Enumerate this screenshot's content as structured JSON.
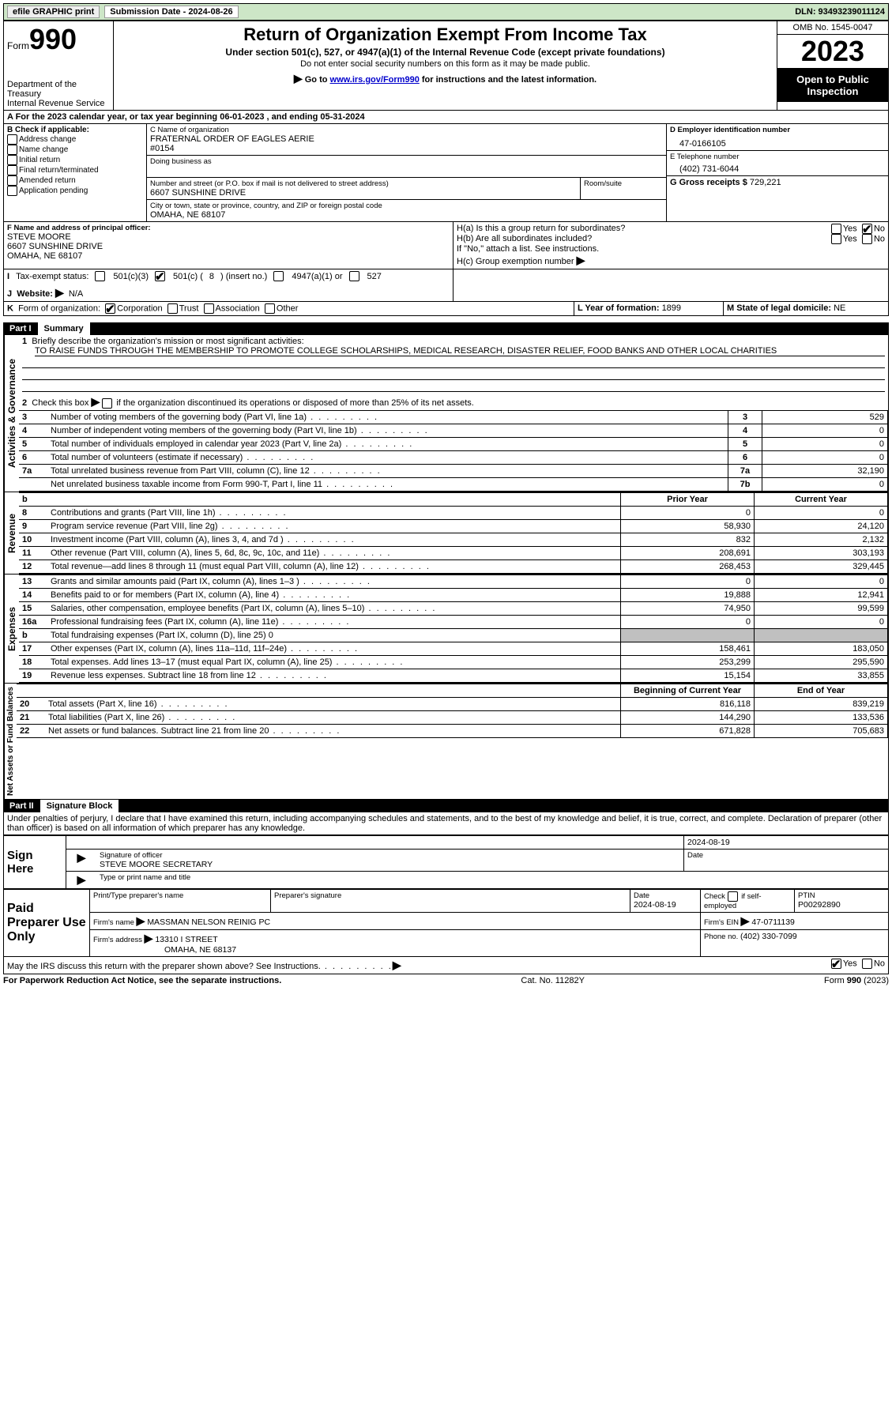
{
  "topbar": {
    "efile_label": "efile GRAPHIC print",
    "submission_label": "Submission Date - 2024-08-26",
    "dln_label": "DLN: 93493239011124"
  },
  "header": {
    "form_label": "Form",
    "form_number": "990",
    "dept1": "Department of the Treasury",
    "dept2": "Internal Revenue Service",
    "title": "Return of Organization Exempt From Income Tax",
    "sub1": "Under section 501(c), 527, or 4947(a)(1) of the Internal Revenue Code (except private foundations)",
    "sub2": "Do not enter social security numbers on this form as it may be made public.",
    "sub3_prefix": "Go to ",
    "sub3_link": "www.irs.gov/Form990",
    "sub3_suffix": " for instructions and the latest information.",
    "omb": "OMB No. 1545-0047",
    "year": "2023",
    "open": "Open to Public Inspection"
  },
  "periodA": {
    "prefix": "A For the 2023 calendar year, or tax year beginning ",
    "begin": "06-01-2023",
    "mid": " , and ending ",
    "end": "05-31-2024"
  },
  "boxB": {
    "title": "B Check if applicable:",
    "o1": "Address change",
    "o2": "Name change",
    "o3": "Initial return",
    "o4": "Final return/terminated",
    "o5": "Amended return",
    "o6": "Application pending"
  },
  "boxC": {
    "name_label": "C Name of organization",
    "name1": "FRATERNAL ORDER OF EAGLES AERIE",
    "name2": "#0154",
    "dba_label": "Doing business as",
    "street_label": "Number and street (or P.O. box if mail is not delivered to street address)",
    "room_label": "Room/suite",
    "street": "6607 SUNSHINE DRIVE",
    "city_label": "City or town, state or province, country, and ZIP or foreign postal code",
    "city": "OMAHA, NE  68107"
  },
  "boxD": {
    "label": "D Employer identification number",
    "value": "47-0166105"
  },
  "boxE": {
    "label": "E Telephone number",
    "value": "(402) 731-6044"
  },
  "boxG": {
    "label": "G Gross receipts $ ",
    "value": "729,221"
  },
  "boxF": {
    "label": "F Name and address of principal officer:",
    "l1": "STEVE MOORE",
    "l2": "6607 SUNSHINE DRIVE",
    "l3": "OMAHA, NE  68107"
  },
  "boxH": {
    "ha": "H(a)  Is this a group return for subordinates?",
    "hb": "H(b)  Are all subordinates included?",
    "hb_note": "If \"No,\" attach a list. See instructions.",
    "hc": "H(c)  Group exemption number ",
    "yes": "Yes",
    "no": "No"
  },
  "boxI": {
    "label": "Tax-exempt status:",
    "o1": "501(c)(3)",
    "o2a": "501(c) (",
    "o2n": "8",
    "o2b": ") (insert no.)",
    "o3": "4947(a)(1) or",
    "o4": "527"
  },
  "boxJ": {
    "label": "Website: ",
    "value": "N/A",
    "prefix": "J"
  },
  "boxK": {
    "prefix": "K",
    "label": "Form of organization:",
    "o1": "Corporation",
    "o2": "Trust",
    "o3": "Association",
    "o4": "Other"
  },
  "boxL": {
    "label": "L Year of formation: ",
    "value": "1899"
  },
  "boxM": {
    "label": "M State of legal domicile: ",
    "value": "NE"
  },
  "parts": {
    "p1": {
      "num": "Part I",
      "title": "Summary"
    },
    "p2": {
      "num": "Part II",
      "title": "Signature Block"
    }
  },
  "sideLabels": {
    "ag": "Activities & Governance",
    "rev": "Revenue",
    "exp": "Expenses",
    "na": "Net Assets or Fund Balances"
  },
  "summary": {
    "q1": "Briefly describe the organization's mission or most significant activities:",
    "q1_val": "TO RAISE FUNDS THROUGH THE MEMBERSHIP TO PROMOTE COLLEGE SCHOLARSHIPS, MEDICAL RESEARCH, DISASTER RELIEF, FOOD BANKS AND OTHER LOCAL CHARITIES",
    "q2": "Check this box      if the organization discontinued its operations or disposed of more than 25% of its net assets.",
    "rows_ag": [
      {
        "n": "3",
        "t": "Number of voting members of the governing body (Part VI, line 1a)",
        "box": "3",
        "v": "529"
      },
      {
        "n": "4",
        "t": "Number of independent voting members of the governing body (Part VI, line 1b)",
        "box": "4",
        "v": "0"
      },
      {
        "n": "5",
        "t": "Total number of individuals employed in calendar year 2023 (Part V, line 2a)",
        "box": "5",
        "v": "0"
      },
      {
        "n": "6",
        "t": "Total number of volunteers (estimate if necessary)",
        "box": "6",
        "v": "0"
      },
      {
        "n": "7a",
        "t": "Total unrelated business revenue from Part VIII, column (C), line 12",
        "box": "7a",
        "v": "32,190"
      },
      {
        "n": "",
        "t": "Net unrelated business taxable income from Form 990-T, Part I, line 11",
        "box": "7b",
        "v": "0"
      }
    ],
    "prior_label": "Prior Year",
    "current_label": "Current Year",
    "rows_rev": [
      {
        "n": "8",
        "t": "Contributions and grants (Part VIII, line 1h)",
        "p": "0",
        "c": "0"
      },
      {
        "n": "9",
        "t": "Program service revenue (Part VIII, line 2g)",
        "p": "58,930",
        "c": "24,120"
      },
      {
        "n": "10",
        "t": "Investment income (Part VIII, column (A), lines 3, 4, and 7d )",
        "p": "832",
        "c": "2,132"
      },
      {
        "n": "11",
        "t": "Other revenue (Part VIII, column (A), lines 5, 6d, 8c, 9c, 10c, and 11e)",
        "p": "208,691",
        "c": "303,193"
      },
      {
        "n": "12",
        "t": "Total revenue—add lines 8 through 11 (must equal Part VIII, column (A), line 12)",
        "p": "268,453",
        "c": "329,445"
      }
    ],
    "rows_exp": [
      {
        "n": "13",
        "t": "Grants and similar amounts paid (Part IX, column (A), lines 1–3 )",
        "p": "0",
        "c": "0"
      },
      {
        "n": "14",
        "t": "Benefits paid to or for members (Part IX, column (A), line 4)",
        "p": "19,888",
        "c": "12,941"
      },
      {
        "n": "15",
        "t": "Salaries, other compensation, employee benefits (Part IX, column (A), lines 5–10)",
        "p": "74,950",
        "c": "99,599"
      },
      {
        "n": "16a",
        "t": "Professional fundraising fees (Part IX, column (A), line 11e)",
        "p": "0",
        "c": "0"
      },
      {
        "n": "b",
        "t": "Total fundraising expenses (Part IX, column (D), line 25) 0",
        "p": "",
        "c": "",
        "grey": true
      },
      {
        "n": "17",
        "t": "Other expenses (Part IX, column (A), lines 11a–11d, 11f–24e)",
        "p": "158,461",
        "c": "183,050"
      },
      {
        "n": "18",
        "t": "Total expenses. Add lines 13–17 (must equal Part IX, column (A), line 25)",
        "p": "253,299",
        "c": "295,590"
      },
      {
        "n": "19",
        "t": "Revenue less expenses. Subtract line 18 from line 12",
        "p": "15,154",
        "c": "33,855"
      }
    ],
    "begin_label": "Beginning of Current Year",
    "end_label": "End of Year",
    "rows_na": [
      {
        "n": "20",
        "t": "Total assets (Part X, line 16)",
        "p": "816,118",
        "c": "839,219"
      },
      {
        "n": "21",
        "t": "Total liabilities (Part X, line 26)",
        "p": "144,290",
        "c": "133,536"
      },
      {
        "n": "22",
        "t": "Net assets or fund balances. Subtract line 21 from line 20",
        "p": "671,828",
        "c": "705,683"
      }
    ],
    "b_label": "b"
  },
  "part2": {
    "perjury": "Under penalties of perjury, I declare that I have examined this return, including accompanying schedules and statements, and to the best of my knowledge and belief, it is true, correct, and complete. Declaration of preparer (other than officer) is based on all information of which preparer has any knowledge.",
    "sign_here": "Sign Here",
    "sig_officer": "Signature of officer",
    "sig_name": "STEVE MOORE SECRETARY",
    "type_name": "Type or print name and title",
    "date": "Date",
    "date_val": "2024-08-19",
    "paid": "Paid Preparer Use Only",
    "p_name_label": "Print/Type preparer's name",
    "p_sig_label": "Preparer's signature",
    "p_date_label": "Date",
    "p_date_val": "2024-08-19",
    "p_check_label": "Check       if self-employed",
    "ptin_label": "PTIN",
    "ptin_val": "P00292890",
    "firm_name_label": "Firm's name   ",
    "firm_name_val": "MASSMAN NELSON REINIG PC",
    "firm_ein_label": "Firm's EIN  ",
    "firm_ein_val": "47-0711139",
    "firm_addr_label": "Firm's address ",
    "firm_addr_val1": "13310 I STREET",
    "firm_addr_val2": "OMAHA, NE  68137",
    "phone_label": "Phone no. ",
    "phone_val": "(402) 330-7099",
    "discuss": "May the IRS discuss this return with the preparer shown above? See Instructions.",
    "yes": "Yes",
    "no": "No"
  },
  "footer": {
    "left": "For Paperwork Reduction Act Notice, see the separate instructions.",
    "mid": "Cat. No. 11282Y",
    "right": "Form 990 (2023)"
  }
}
